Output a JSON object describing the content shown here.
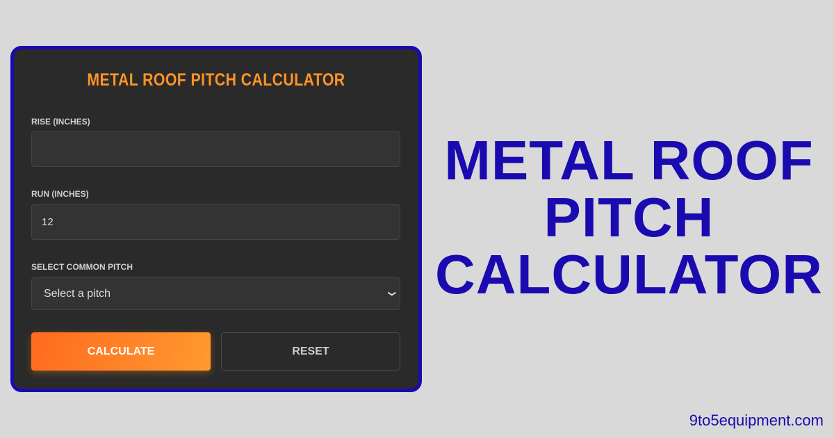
{
  "calculator": {
    "title": "METAL ROOF PITCH CALCULATOR",
    "rise": {
      "label": "RISE (INCHES)",
      "value": ""
    },
    "run": {
      "label": "RUN (INCHES)",
      "value": "12"
    },
    "pitch": {
      "label": "SELECT COMMON PITCH",
      "selected": "Select a pitch"
    },
    "calculate_label": "CALCULATE",
    "reset_label": "RESET",
    "colors": {
      "accent": "#ff9426",
      "border": "#1a0bb0",
      "card": "#2a2a2a"
    }
  },
  "headline": {
    "lines": [
      "METAL ROOF",
      "PITCH",
      "CALCULATOR"
    ]
  },
  "footer": {
    "site": "9to5equipment.com"
  }
}
